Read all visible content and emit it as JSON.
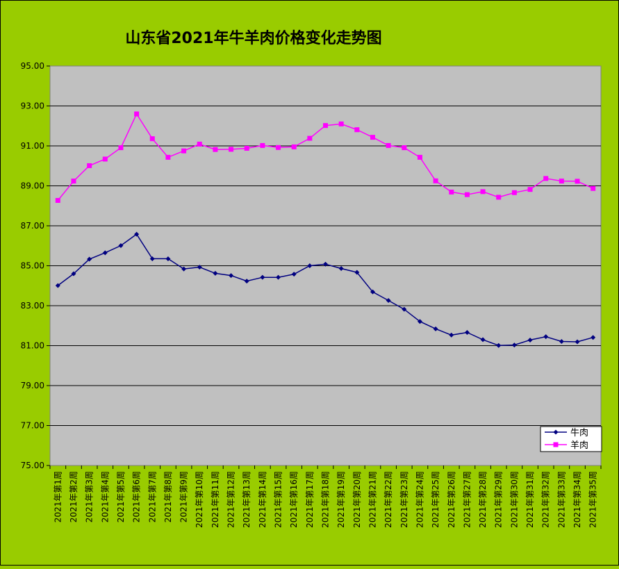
{
  "chart_data": {
    "type": "line",
    "title": "山东省2021年牛羊肉价格变化走势图",
    "xlabel": "",
    "ylabel": "",
    "ylim": [
      75,
      95
    ],
    "ytick_step": 2,
    "ytick_labels": [
      "75.00",
      "77.00",
      "79.00",
      "81.00",
      "83.00",
      "85.00",
      "87.00",
      "89.00",
      "91.00",
      "93.00",
      "95.00"
    ],
    "grid": true,
    "legend_position": "bottom-right",
    "colors": {
      "background": "#99cc00",
      "plot_area": "#c0c0c0",
      "beef": "#000080",
      "mutton": "#ff00ff"
    },
    "categories": [
      "2021年第1周",
      "2021年第2周",
      "2021年第3周",
      "2021年第4周",
      "2021年第5周",
      "2021年第6周",
      "2021年第7周",
      "2021年第8周",
      "2021年第9周",
      "2021年第10周",
      "2021年第11周",
      "2021年第12周",
      "2021年第13周",
      "2021年第14周",
      "2021年第15周",
      "2021年第16周",
      "2021年第17周",
      "2021年第18周",
      "2021年第19周",
      "2021年第20周",
      "2021年第21周",
      "2021年第22周",
      "2021年第23周",
      "2021年第24周",
      "2021年第25周",
      "2021年第26周",
      "2021年第27周",
      "2021年第28周",
      "2021年第29周",
      "2021年第30周",
      "2021年第31周",
      "2021年第32周",
      "2021年第33周",
      "2021年第34周",
      "2021年第35周"
    ],
    "series": [
      {
        "name": "牛肉",
        "marker": "diamond",
        "values": [
          84.01,
          84.6,
          85.33,
          85.65,
          86.01,
          86.58,
          85.35,
          85.35,
          84.84,
          84.93,
          84.62,
          84.51,
          84.23,
          84.42,
          84.42,
          84.58,
          85.0,
          85.08,
          84.86,
          84.67,
          83.69,
          83.26,
          82.82,
          82.21,
          81.84,
          81.53,
          81.66,
          81.3,
          81.01,
          81.03,
          81.28,
          81.45,
          81.21,
          81.19,
          81.41
        ]
      },
      {
        "name": "羊肉",
        "marker": "square",
        "values": [
          88.27,
          89.24,
          90.01,
          90.34,
          90.91,
          92.6,
          91.36,
          90.43,
          90.75,
          91.09,
          90.82,
          90.83,
          90.88,
          91.02,
          90.92,
          90.95,
          91.38,
          92.02,
          92.1,
          91.81,
          91.43,
          91.02,
          90.91,
          90.43,
          89.25,
          88.69,
          88.56,
          88.71,
          88.43,
          88.66,
          88.82,
          89.37,
          89.24,
          89.23,
          88.87
        ]
      }
    ]
  }
}
